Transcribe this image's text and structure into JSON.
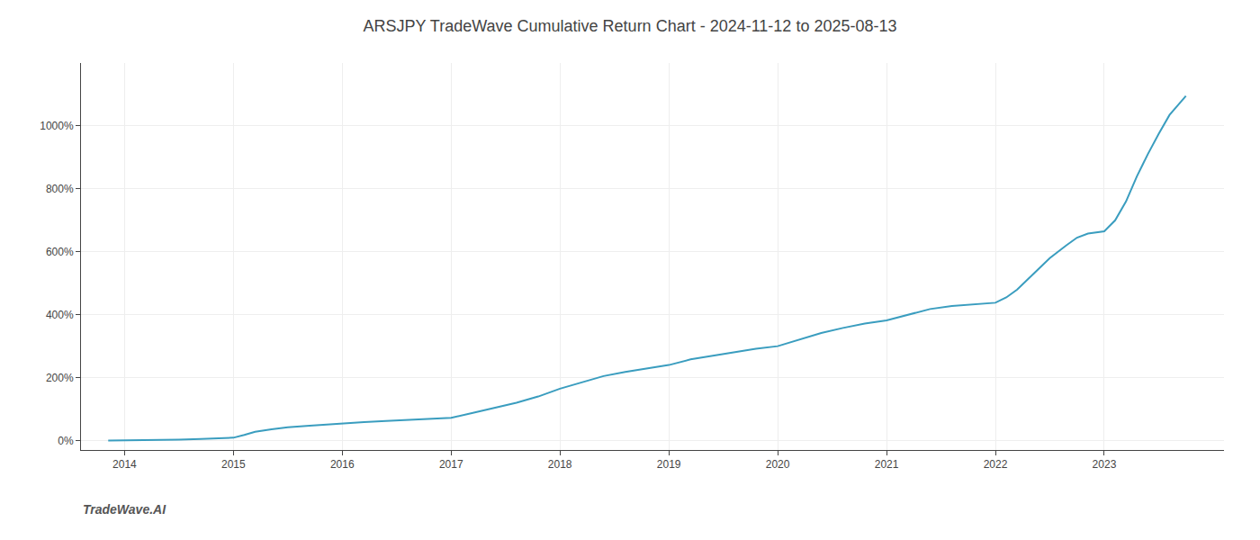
{
  "chart_data": {
    "type": "line",
    "title": "ARSJPY TradeWave Cumulative Return Chart - 2024-11-12 to 2025-08-13",
    "annotations": [
      "TradeWave.AI"
    ],
    "color": "#3a9dbf",
    "x": [
      2013.85,
      2014.0,
      2014.1,
      2014.3,
      2014.5,
      2014.7,
      2014.9,
      2015.0,
      2015.1,
      2015.2,
      2015.35,
      2015.5,
      2015.7,
      2015.9,
      2016.0,
      2016.2,
      2016.4,
      2016.6,
      2016.8,
      2017.0,
      2017.2,
      2017.4,
      2017.6,
      2017.8,
      2018.0,
      2018.2,
      2018.4,
      2018.6,
      2018.8,
      2019.0,
      2019.2,
      2019.4,
      2019.6,
      2019.8,
      2020.0,
      2020.2,
      2020.4,
      2020.6,
      2020.8,
      2021.0,
      2021.2,
      2021.4,
      2021.6,
      2021.8,
      2022.0,
      2022.1,
      2022.2,
      2022.35,
      2022.5,
      2022.65,
      2022.75,
      2022.85,
      2023.0,
      2023.1,
      2023.2,
      2023.3,
      2023.4,
      2023.5,
      2023.6,
      2023.7,
      2023.75
    ],
    "values": [
      0.0,
      0.5,
      0.8,
      1.5,
      3.0,
      5.0,
      7.0,
      9.0,
      18.0,
      28.0,
      36.0,
      42.0,
      47.0,
      52.0,
      55.0,
      59.0,
      62.0,
      65.0,
      68.0,
      72.0,
      88.0,
      105.0,
      120.0,
      140.0,
      165.0,
      185.0,
      205.0,
      218.0,
      228.0,
      240.0,
      258.0,
      270.0,
      280.0,
      292.0,
      300.0,
      322.0,
      342.0,
      358.0,
      372.0,
      382.0,
      400.0,
      418.0,
      428.0,
      432.0,
      438.0,
      455.0,
      480.0,
      530.0,
      580.0,
      620.0,
      645.0,
      658.0,
      665.0,
      700.0,
      760.0,
      840.0,
      910.0,
      975.0,
      1035.0,
      1075.0,
      1095.0
    ],
    "xlim": [
      2013.6,
      2024.1
    ],
    "xticks": [
      2014,
      2015,
      2016,
      2017,
      2018,
      2019,
      2020,
      2021,
      2022,
      2023
    ],
    "ylim": [
      -30,
      1200
    ],
    "yticks": [
      {
        "value": 0,
        "label": "0%"
      },
      {
        "value": 200,
        "label": "200%"
      },
      {
        "value": 400,
        "label": "400%"
      },
      {
        "value": 600,
        "label": "600%"
      },
      {
        "value": 800,
        "label": "800%"
      },
      {
        "value": 1000,
        "label": "1000%"
      }
    ],
    "grid": true
  }
}
